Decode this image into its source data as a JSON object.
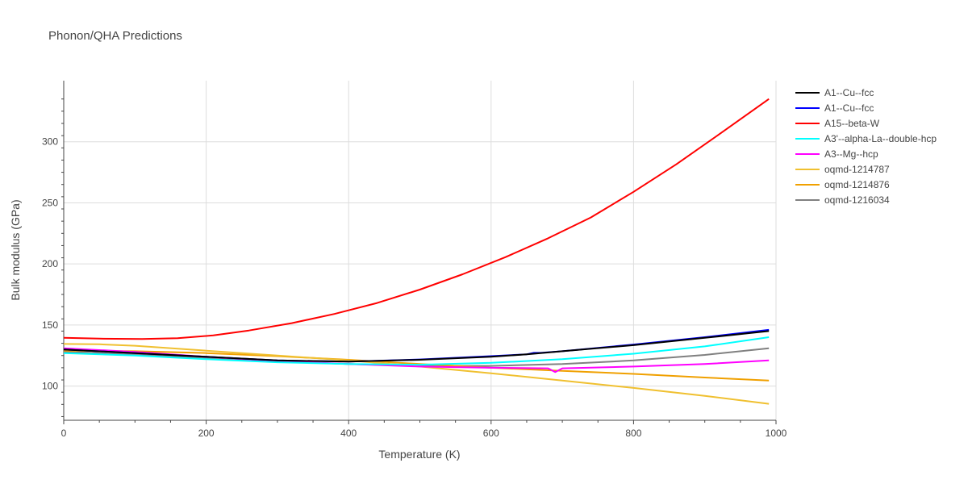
{
  "chart_data": {
    "type": "line",
    "title": "Phonon/QHA Predictions",
    "xlabel": "Temperature (K)",
    "ylabel": "Bulk modulus (GPa)",
    "xlim": [
      0,
      1000
    ],
    "ylim": [
      72,
      350
    ],
    "xticks": [
      0,
      200,
      400,
      600,
      800,
      1000
    ],
    "yticks": [
      100,
      150,
      200,
      250,
      300
    ],
    "grid": true,
    "legend_position": "right",
    "series": [
      {
        "name": "A1--Cu--fcc",
        "color": "#000000",
        "x": [
          0,
          100,
          200,
          300,
          400,
          500,
          600,
          650,
          700,
          800,
          900,
          990
        ],
        "y": [
          130,
          127,
          124,
          121,
          120,
          121.5,
          124,
          126,
          128.5,
          133.5,
          139.5,
          145
        ]
      },
      {
        "name": "A1--Cu--fcc",
        "color": "#0000ff",
        "x": [
          0,
          100,
          200,
          300,
          400,
          500,
          600,
          650,
          660,
          670,
          700,
          800,
          900,
          990
        ],
        "y": [
          130,
          127,
          124,
          121,
          120,
          121.8,
          124.5,
          126,
          127.2,
          127.2,
          128.5,
          134,
          140,
          146
        ]
      },
      {
        "name": "A15--beta-W",
        "color": "#ff0000",
        "x": [
          0,
          50,
          110,
          160,
          210,
          260,
          320,
          380,
          440,
          500,
          560,
          620,
          680,
          740,
          800,
          860,
          920,
          990
        ],
        "y": [
          139.5,
          138.8,
          138.5,
          139.2,
          141.5,
          145.5,
          151.5,
          159,
          168,
          179,
          191.5,
          205.5,
          221,
          238,
          259,
          281.5,
          306,
          335
        ]
      },
      {
        "name": "A3'--alpha-La--double-hcp",
        "color": "#00ffff",
        "x": [
          0,
          100,
          200,
          300,
          400,
          500,
          600,
          700,
          800,
          900,
          990
        ],
        "y": [
          127,
          125,
          122,
          119.5,
          118,
          117.5,
          119,
          122,
          126.5,
          132.5,
          140
        ]
      },
      {
        "name": "A3--Mg--hcp",
        "color": "#ff00ff",
        "x": [
          0,
          100,
          200,
          300,
          400,
          500,
          600,
          680,
          690,
          700,
          800,
          900,
          990
        ],
        "y": [
          131,
          128,
          124,
          120.5,
          118,
          116,
          115,
          114.5,
          111.5,
          114.5,
          116,
          118,
          121
        ]
      },
      {
        "name": "oqmd-1214787",
        "color": "#f0c030",
        "x": [
          0,
          50,
          100,
          200,
          300,
          400,
          500,
          600,
          700,
          800,
          900,
          990
        ],
        "y": [
          134.5,
          134.2,
          133,
          129,
          125,
          121,
          116,
          110.5,
          104.5,
          98.5,
          92,
          85.5
        ]
      },
      {
        "name": "oqmd-1214876",
        "color": "#f0a000",
        "x": [
          0,
          100,
          200,
          300,
          400,
          500,
          600,
          700,
          800,
          900,
          990
        ],
        "y": [
          129,
          128.5,
          127,
          124.5,
          121.5,
          118,
          115,
          112.5,
          110,
          107,
          104.5
        ]
      },
      {
        "name": "oqmd-1216034",
        "color": "#808080",
        "x": [
          0,
          100,
          200,
          300,
          400,
          500,
          600,
          700,
          800,
          900,
          990
        ],
        "y": [
          128,
          126,
          123,
          120,
          118,
          116.5,
          116.5,
          118,
          121,
          125.5,
          131
        ]
      }
    ]
  }
}
